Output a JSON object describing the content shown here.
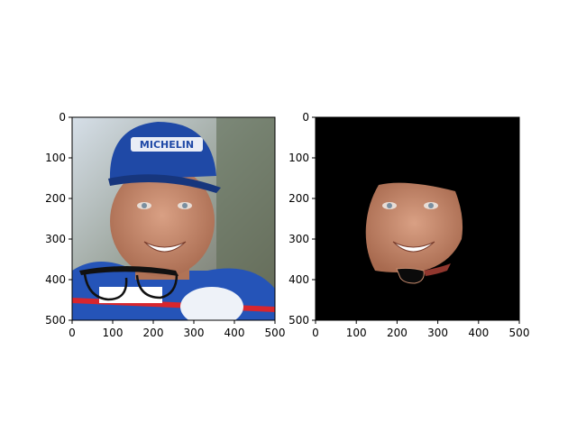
{
  "figure": {
    "panels": [
      {
        "name": "original-with-glasses",
        "content": "photo",
        "x_ticks": [
          "0",
          "100",
          "200",
          "300",
          "400",
          "500"
        ],
        "y_ticks": [
          "0",
          "100",
          "200",
          "300",
          "400",
          "500"
        ],
        "cap_text": "MICHELIN"
      },
      {
        "name": "segmented-face",
        "content": "mask",
        "x_ticks": [
          "0",
          "100",
          "200",
          "300",
          "400",
          "500"
        ],
        "y_ticks": [
          "0",
          "100",
          "200",
          "300",
          "400",
          "500"
        ]
      }
    ],
    "colors": {
      "background": "#000000",
      "sky": "#c9d3dd",
      "skin": "#c98c6e",
      "cap": "#1f49a6",
      "suit": "#2554b8",
      "glasses": "#111111"
    }
  }
}
